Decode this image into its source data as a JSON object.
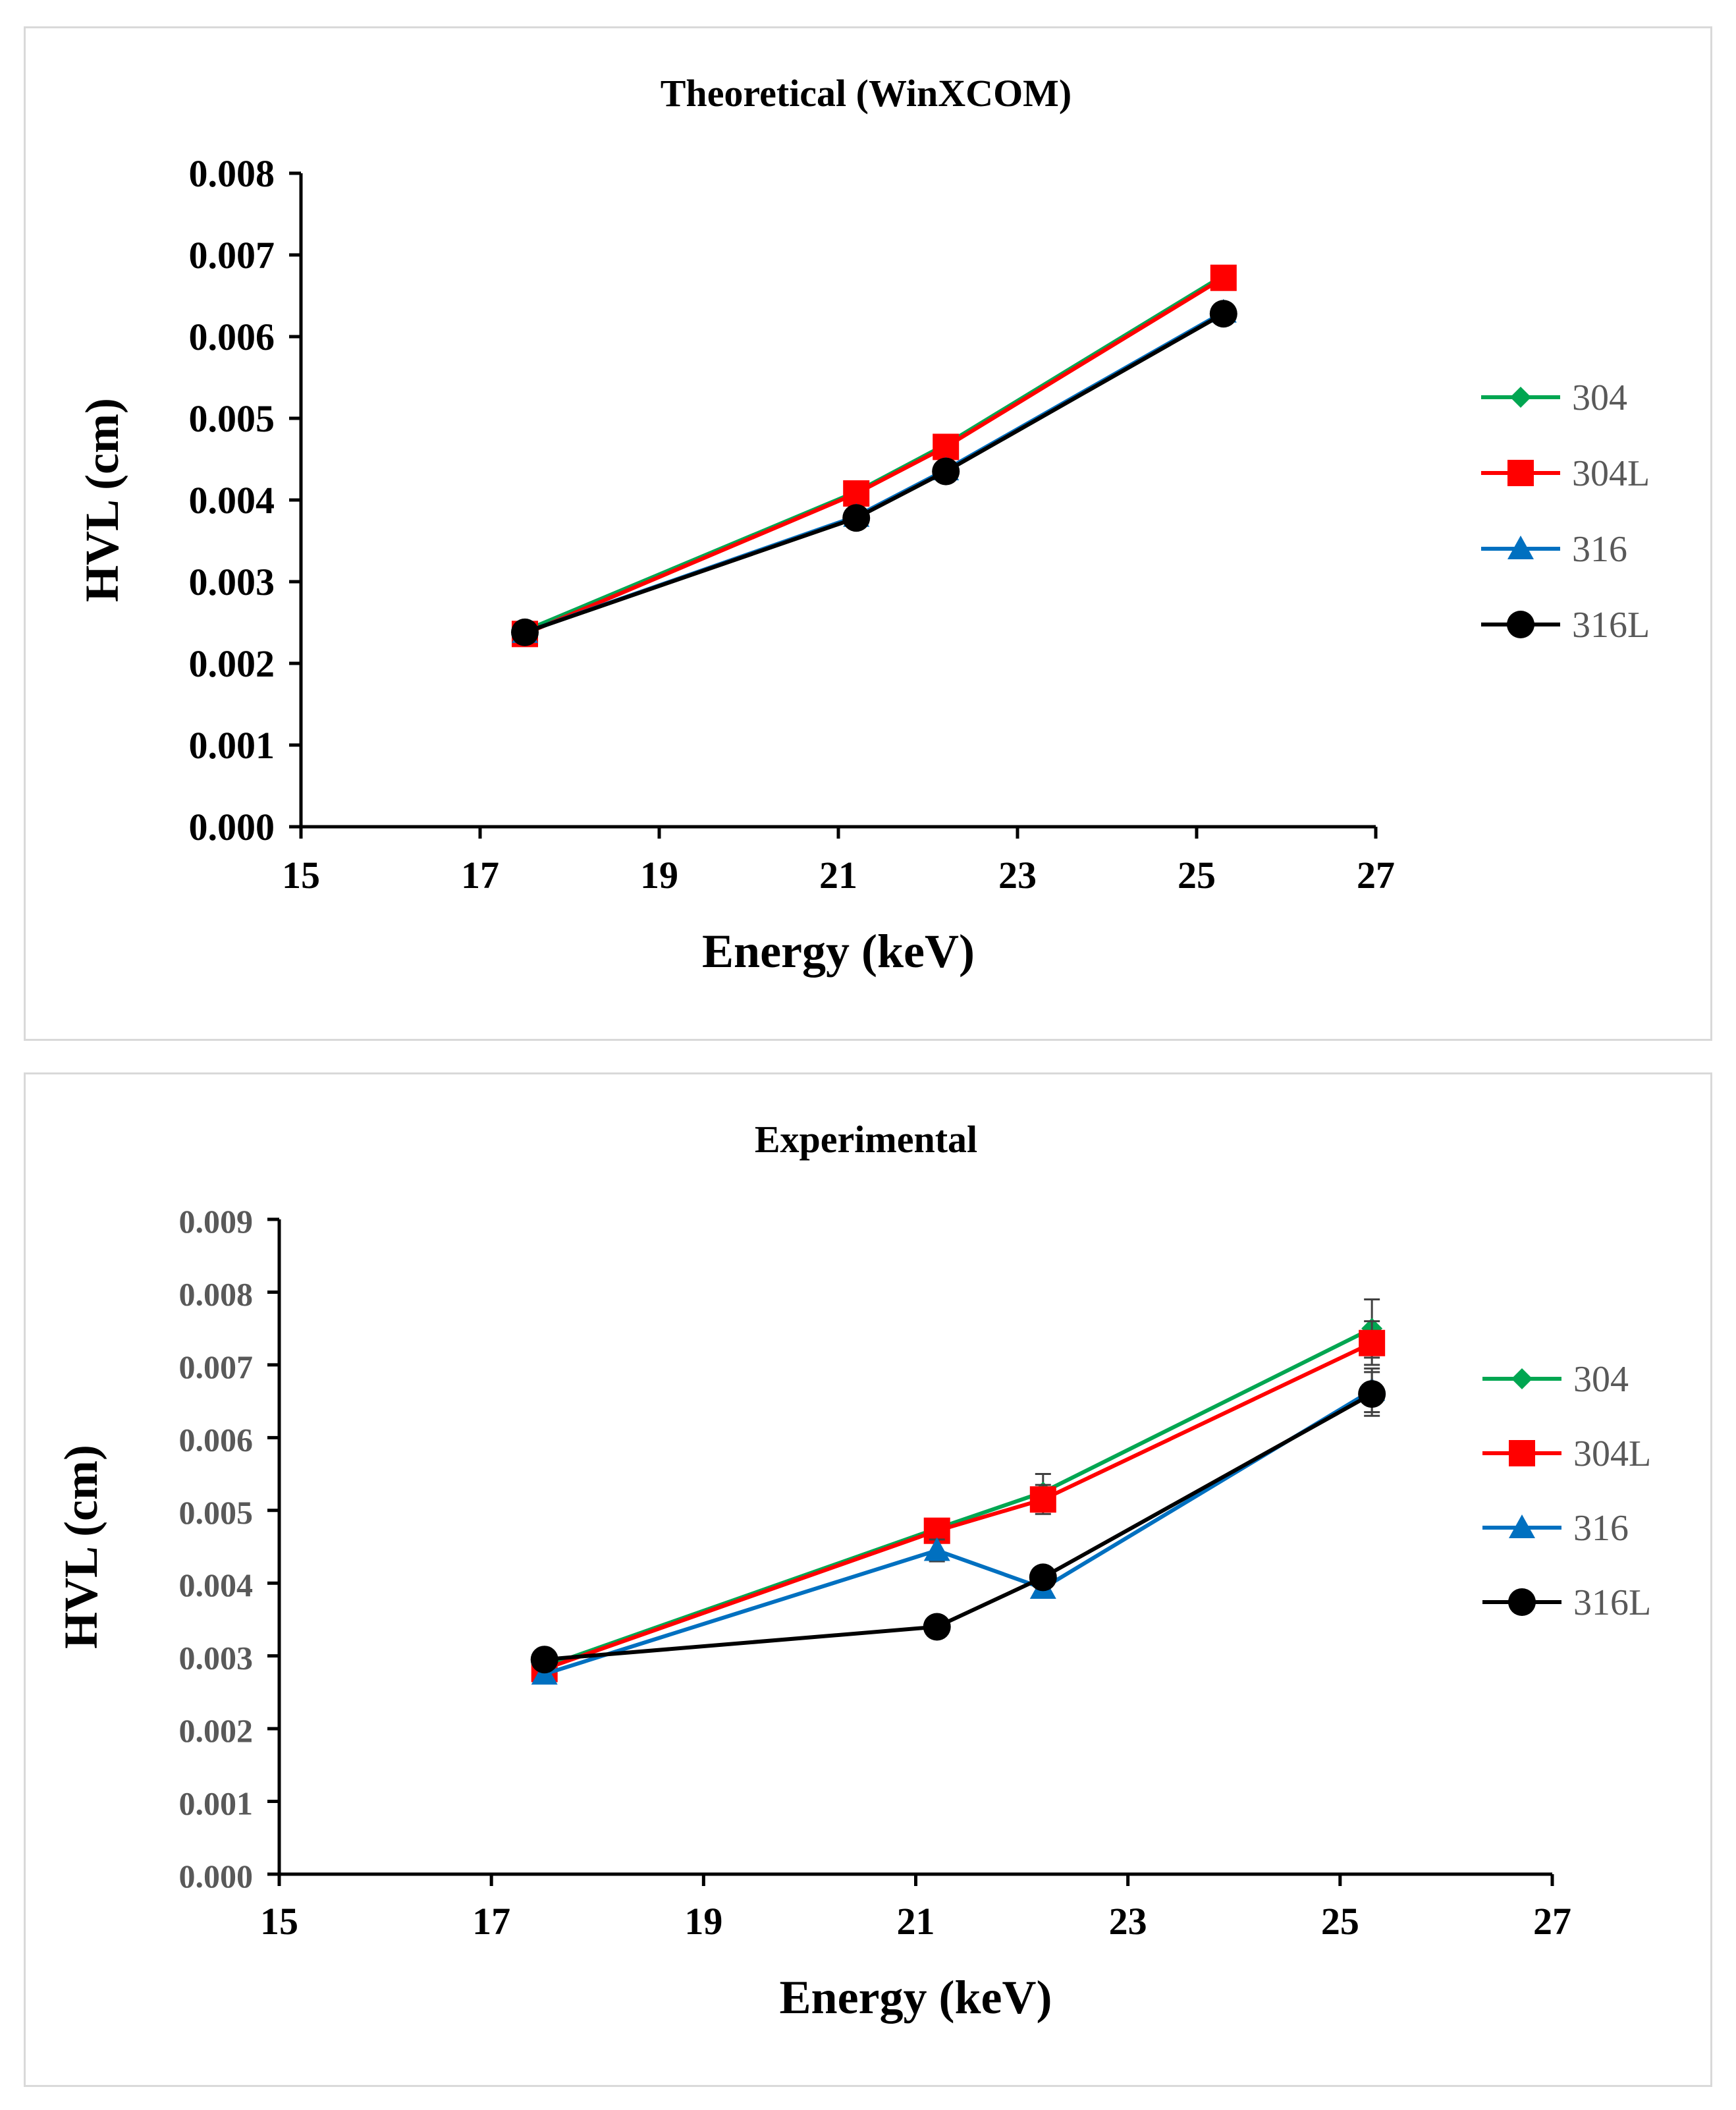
{
  "chart_data": [
    {
      "type": "line",
      "title": "Theoretical (WinXCOM)",
      "xlabel": "Energy (keV)",
      "ylabel": "HVL (cm)",
      "xlim": [
        15,
        27
      ],
      "ylim": [
        0,
        0.008
      ],
      "x_ticks": [
        "15",
        "17",
        "19",
        "21",
        "23",
        "25",
        "27"
      ],
      "y_ticks": [
        "0.000",
        "0.001",
        "0.002",
        "0.003",
        "0.004",
        "0.005",
        "0.006",
        "0.007",
        "0.008"
      ],
      "x": [
        17.5,
        21.2,
        22.2,
        25.3
      ],
      "legend": "right",
      "series": [
        {
          "name": "304",
          "color": "#00a651",
          "marker": "diamond",
          "values": [
            0.0024,
            0.0041,
            0.00468,
            0.00675
          ]
        },
        {
          "name": "304L",
          "color": "#ff0000",
          "marker": "square",
          "values": [
            0.00236,
            0.00408,
            0.00465,
            0.00672
          ]
        },
        {
          "name": "316",
          "color": "#0070c0",
          "marker": "triangle",
          "values": [
            0.00238,
            0.0038,
            0.00437,
            0.0063
          ]
        },
        {
          "name": "316L",
          "color": "#000000",
          "marker": "circle",
          "values": [
            0.00238,
            0.00378,
            0.00435,
            0.00628
          ]
        }
      ]
    },
    {
      "type": "line",
      "title": "Experimental",
      "xlabel": "Energy (keV)",
      "ylabel": "HVL (cm)",
      "xlim": [
        15,
        27
      ],
      "ylim": [
        0,
        0.009
      ],
      "x_ticks": [
        "15",
        "17",
        "19",
        "21",
        "23",
        "25",
        "27"
      ],
      "y_ticks": [
        "0.000",
        "0.001",
        "0.002",
        "0.003",
        "0.004",
        "0.005",
        "0.006",
        "0.007",
        "0.008",
        "0.009"
      ],
      "x": [
        17.5,
        21.2,
        22.2,
        25.3
      ],
      "legend": "right",
      "series": [
        {
          "name": "304",
          "color": "#00a651",
          "marker": "diamond",
          "values": [
            0.00285,
            0.00475,
            0.00525,
            0.0075
          ],
          "errors": [
            0.0001,
            0.0001,
            0.00025,
            0.0004
          ]
        },
        {
          "name": "304L",
          "color": "#ff0000",
          "marker": "square",
          "values": [
            0.00282,
            0.00472,
            0.00515,
            0.0073
          ],
          "errors": [
            0.0001,
            0.0001,
            0.0002,
            0.0003
          ]
        },
        {
          "name": "316",
          "color": "#0070c0",
          "marker": "triangle",
          "values": [
            0.00275,
            0.00445,
            0.00393,
            0.00665
          ],
          "errors": [
            0.0001,
            0.00015,
            0.0001,
            0.0003
          ]
        },
        {
          "name": "316L",
          "color": "#000000",
          "marker": "circle",
          "values": [
            0.00295,
            0.0034,
            0.00408,
            0.0066
          ],
          "errors": [
            0.0001,
            0.0001,
            0.0001,
            0.0003
          ]
        }
      ]
    }
  ]
}
